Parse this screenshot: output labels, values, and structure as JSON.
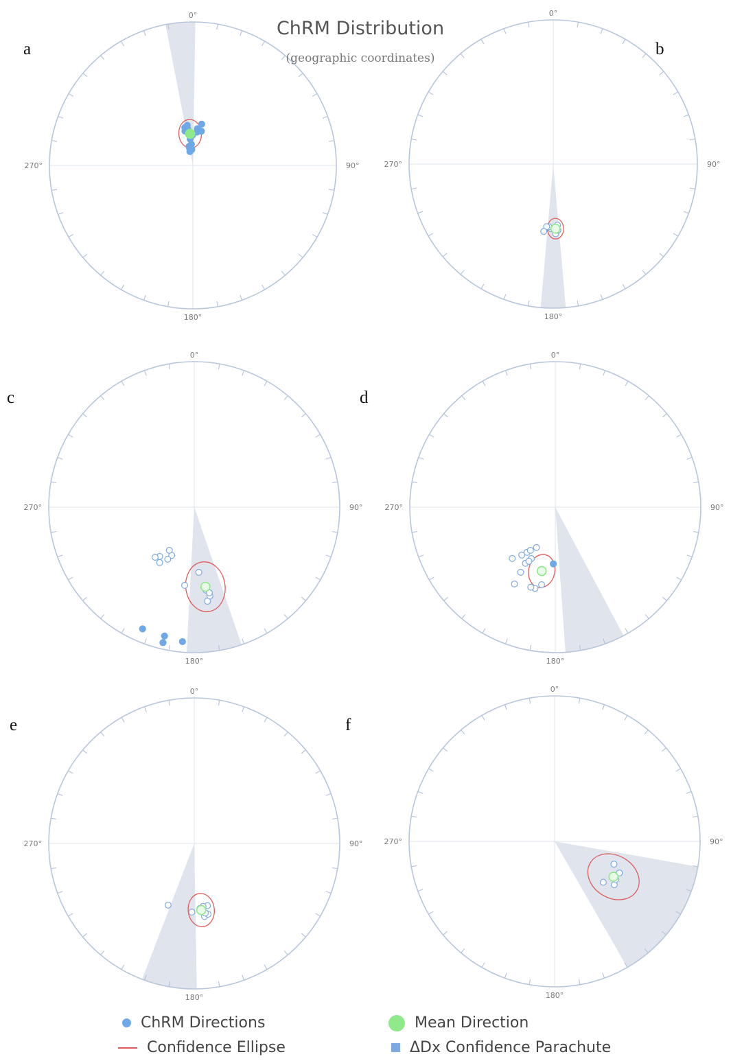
{
  "header": {
    "title": "ChRM Distribution",
    "subtitle": "(geographic coordinates)"
  },
  "legend": [
    {
      "key": "chrm",
      "label": "ChRM Directions"
    },
    {
      "key": "ellipse",
      "label": "Confidence Ellipse"
    },
    {
      "key": "mean",
      "label": "Mean Direction"
    },
    {
      "key": "parachute",
      "label": "ΔDx Confidence Parachute"
    }
  ],
  "colors": {
    "circle": "#b8c6dc",
    "axis": "#dde3ec",
    "point_fill": "#6fa8e6",
    "point_stroke_open": "#7ea9e0",
    "mean_fill": "#8fe88a",
    "mean_open_fill": "#e8fbe6",
    "ellipse": "#e05b5b",
    "parachute": "#dde3ec",
    "tick_label": "#777777"
  },
  "chart_data": [
    {
      "type": "scatter",
      "panel": "a",
      "projection": "equal-area",
      "tick_labels": {
        "north": "0°",
        "east": "90°",
        "south": "180°",
        "west": "270°"
      },
      "points_lower": [
        [
          352,
          67
        ],
        [
          351,
          69
        ],
        [
          350,
          70
        ],
        [
          352,
          69
        ],
        [
          350,
          68
        ],
        [
          348,
          68
        ],
        [
          347,
          70
        ],
        [
          354,
          71
        ],
        [
          356,
          73
        ],
        [
          354,
          73
        ],
        [
          359,
          73
        ],
        [
          7,
          69
        ],
        [
          7,
          71
        ],
        [
          14,
          70
        ],
        [
          12,
          66
        ],
        [
          354,
          75
        ],
        [
          356,
          78
        ],
        [
          349,
          79
        ],
        [
          349,
          80
        ],
        [
          352,
          81
        ],
        [
          348,
          82
        ],
        [
          356,
          81
        ]
      ],
      "points_upper": [],
      "mean": {
        "dec": 355,
        "inc": 72,
        "open": false
      },
      "ellipse": {
        "dec": 355,
        "inc": 72,
        "a95": 7
      },
      "parachute": {
        "dec": 355,
        "ddx": 6
      }
    },
    {
      "type": "scatter",
      "panel": "b",
      "projection": "equal-area",
      "tick_labels": {
        "north": "0°",
        "east": "90°",
        "south": "180°",
        "west": "270°"
      },
      "points_lower": [],
      "points_upper": [
        [
          178,
          50
        ],
        [
          182,
          53
        ],
        [
          184,
          54
        ],
        [
          186,
          54
        ],
        [
          177,
          54
        ],
        [
          176,
          55
        ],
        [
          176,
          52
        ],
        [
          188,
          51
        ],
        [
          179,
          53
        ]
      ],
      "mean": {
        "dec": 178,
        "inc": 53,
        "open": true
      },
      "ellipse": {
        "dec": 178,
        "inc": 53,
        "a95": 5
      },
      "parachute": {
        "dec": 180,
        "ddx": 5
      }
    },
    {
      "type": "scatter",
      "panel": "c",
      "projection": "equal-area",
      "tick_labels": {
        "north": "0°",
        "east": "90°",
        "south": "180°",
        "west": "270°"
      },
      "points_lower": [
        [
          203,
          10
        ],
        [
          193,
          10
        ],
        [
          185,
          8
        ],
        [
          193,
          5
        ]
      ],
      "points_upper": [
        [
          212,
          53
        ],
        [
          205,
          60
        ],
        [
          207,
          57
        ],
        [
          210,
          62
        ],
        [
          215,
          56
        ],
        [
          218,
          54
        ],
        [
          176,
          53
        ],
        [
          187,
          45
        ],
        [
          172,
          42
        ],
        [
          170,
          38
        ],
        [
          172,
          35
        ],
        [
          170,
          40
        ]
      ],
      "mean": {
        "dec": 172,
        "inc": 44,
        "open": true
      },
      "ellipse": {
        "dec": 172,
        "inc": 44,
        "a95": 12
      },
      "parachute": {
        "dec": 172,
        "ddx": 11
      }
    },
    {
      "type": "scatter",
      "panel": "d",
      "projection": "equal-area",
      "tick_labels": {
        "north": "0°",
        "east": "90°",
        "south": "180°",
        "west": "270°"
      },
      "points_upper": [
        [
          220,
          52
        ],
        [
          208,
          54
        ],
        [
          212,
          60
        ],
        [
          210,
          62
        ],
        [
          215,
          57
        ],
        [
          208,
          48
        ],
        [
          205,
          58
        ],
        [
          205,
          65
        ],
        [
          208,
          40
        ],
        [
          190,
          45
        ],
        [
          194,
          42
        ],
        [
          197,
          42
        ],
        [
          206,
          56
        ]
      ],
      "points_lower": [
        [
          182,
          58
        ]
      ],
      "mean": {
        "dec": 192,
        "inc": 53,
        "open": true
      },
      "ellipse": {
        "dec": 192,
        "inc": 53,
        "a95": 8
      },
      "parachute": {
        "dec": 164,
        "ddx": 12
      }
    },
    {
      "type": "scatter",
      "panel": "e",
      "projection": "equal-area",
      "tick_labels": {
        "north": "0°",
        "east": "90°",
        "south": "180°",
        "west": "270°"
      },
      "points_upper": [
        [
          168,
          54
        ],
        [
          172,
          54
        ],
        [
          174,
          51
        ],
        [
          172,
          50
        ],
        [
          172,
          48
        ],
        [
          169,
          49
        ],
        [
          171,
          50
        ],
        [
          175,
          53
        ],
        [
          174,
          53
        ],
        [
          203,
          52
        ],
        [
          182,
          51
        ]
      ],
      "points_lower": [],
      "mean": {
        "dec": 174,
        "inc": 52,
        "open": true
      },
      "ellipse": {
        "dec": 174,
        "inc": 52,
        "a95": 8
      },
      "parachute": {
        "dec": 190,
        "ddx": 11
      }
    },
    {
      "type": "scatter",
      "panel": "f",
      "projection": "equal-area",
      "tick_labels": {
        "north": "0°",
        "east": "90°",
        "south": "180°",
        "west": "270°"
      },
      "points_upper": [
        [
          130,
          54
        ],
        [
          126,
          48
        ],
        [
          111,
          54
        ],
        [
          122,
          49
        ],
        [
          116,
          49
        ]
      ],
      "points_lower": [],
      "mean": {
        "dec": 121,
        "inc": 51,
        "open": true
      },
      "ellipse": {
        "dec": 121,
        "inc": 51,
        "a95": 13
      },
      "parachute": {
        "dec": 125,
        "ddx": 25
      }
    }
  ]
}
